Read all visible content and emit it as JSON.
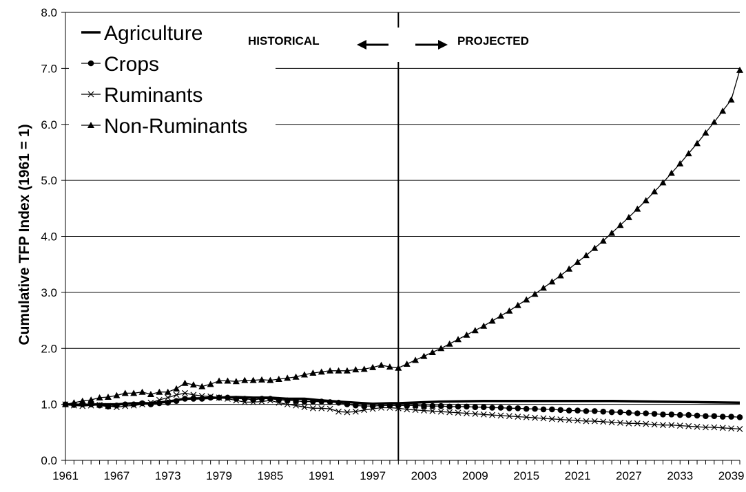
{
  "chart_data": {
    "type": "line",
    "ylabel": "Cumulative TFP Index (1961 = 1)",
    "xlabel": "",
    "xlim": [
      1961,
      2040
    ],
    "ylim": [
      0,
      8
    ],
    "grid": "horizontal",
    "legend_position": "top-left",
    "x_tick_labels": [
      "1961",
      "1967",
      "1973",
      "1979",
      "1985",
      "1991",
      "1997",
      "2003",
      "2009",
      "2015",
      "2021",
      "2027",
      "2033",
      "2039"
    ],
    "y_tick_labels": [
      "0.0",
      "1.0",
      "2.0",
      "3.0",
      "4.0",
      "5.0",
      "6.0",
      "7.0",
      "8.0"
    ],
    "divider_year": 2000,
    "annotations": {
      "historical": "HISTORICAL",
      "projected": "PROJECTED"
    },
    "series": [
      {
        "name": "Agriculture",
        "marker": "none",
        "points": [
          [
            1961,
            1.0
          ],
          [
            1963,
            0.99
          ],
          [
            1965,
            1.0
          ],
          [
            1967,
            1.0
          ],
          [
            1969,
            1.02
          ],
          [
            1971,
            1.02
          ],
          [
            1973,
            1.05
          ],
          [
            1975,
            1.1
          ],
          [
            1977,
            1.11
          ],
          [
            1979,
            1.12
          ],
          [
            1981,
            1.13
          ],
          [
            1983,
            1.12
          ],
          [
            1985,
            1.12
          ],
          [
            1987,
            1.1
          ],
          [
            1989,
            1.1
          ],
          [
            1991,
            1.07
          ],
          [
            1993,
            1.05
          ],
          [
            1995,
            1.03
          ],
          [
            1997,
            1.01
          ],
          [
            1999,
            1.02
          ],
          [
            2000,
            1.02
          ],
          [
            2005,
            1.05
          ],
          [
            2010,
            1.06
          ],
          [
            2015,
            1.06
          ],
          [
            2020,
            1.06
          ],
          [
            2025,
            1.06
          ],
          [
            2030,
            1.05
          ],
          [
            2035,
            1.04
          ],
          [
            2040,
            1.03
          ]
        ]
      },
      {
        "name": "Crops",
        "marker": "circle",
        "points": [
          [
            1961,
            1.0
          ],
          [
            1962,
            0.99
          ],
          [
            1963,
            1.0
          ],
          [
            1964,
            1.0
          ],
          [
            1965,
            0.98
          ],
          [
            1966,
            0.96
          ],
          [
            1967,
            0.98
          ],
          [
            1968,
            1.0
          ],
          [
            1969,
            1.0
          ],
          [
            1970,
            1.02
          ],
          [
            1971,
            1.0
          ],
          [
            1972,
            1.02
          ],
          [
            1973,
            1.03
          ],
          [
            1974,
            1.06
          ],
          [
            1975,
            1.1
          ],
          [
            1976,
            1.1
          ],
          [
            1977,
            1.1
          ],
          [
            1978,
            1.12
          ],
          [
            1979,
            1.12
          ],
          [
            1980,
            1.12
          ],
          [
            1981,
            1.1
          ],
          [
            1982,
            1.1
          ],
          [
            1983,
            1.08
          ],
          [
            1984,
            1.1
          ],
          [
            1985,
            1.1
          ],
          [
            1986,
            1.08
          ],
          [
            1987,
            1.07
          ],
          [
            1988,
            1.06
          ],
          [
            1989,
            1.05
          ],
          [
            1990,
            1.05
          ],
          [
            1991,
            1.05
          ],
          [
            1992,
            1.04
          ],
          [
            1993,
            1.03
          ],
          [
            1994,
            1.0
          ],
          [
            1995,
            0.98
          ],
          [
            1996,
            0.97
          ],
          [
            1997,
            0.97
          ],
          [
            1998,
            0.98
          ],
          [
            1999,
            0.98
          ],
          [
            2000,
            0.98
          ],
          [
            2001,
            0.98
          ],
          [
            2002,
            0.98
          ],
          [
            2003,
            0.97
          ],
          [
            2004,
            0.97
          ],
          [
            2005,
            0.97
          ],
          [
            2006,
            0.96
          ],
          [
            2007,
            0.96
          ],
          [
            2008,
            0.96
          ],
          [
            2009,
            0.95
          ],
          [
            2010,
            0.95
          ],
          [
            2011,
            0.94
          ],
          [
            2012,
            0.94
          ],
          [
            2013,
            0.93
          ],
          [
            2014,
            0.93
          ],
          [
            2015,
            0.92
          ],
          [
            2016,
            0.92
          ],
          [
            2017,
            0.91
          ],
          [
            2018,
            0.91
          ],
          [
            2019,
            0.9
          ],
          [
            2020,
            0.89
          ],
          [
            2021,
            0.89
          ],
          [
            2022,
            0.88
          ],
          [
            2023,
            0.88
          ],
          [
            2024,
            0.87
          ],
          [
            2025,
            0.86
          ],
          [
            2026,
            0.86
          ],
          [
            2027,
            0.85
          ],
          [
            2028,
            0.84
          ],
          [
            2029,
            0.84
          ],
          [
            2030,
            0.83
          ],
          [
            2031,
            0.82
          ],
          [
            2032,
            0.82
          ],
          [
            2033,
            0.81
          ],
          [
            2034,
            0.81
          ],
          [
            2035,
            0.8
          ],
          [
            2036,
            0.79
          ],
          [
            2037,
            0.79
          ],
          [
            2038,
            0.78
          ],
          [
            2039,
            0.78
          ],
          [
            2040,
            0.77
          ]
        ]
      },
      {
        "name": "Ruminants",
        "marker": "x",
        "points": [
          [
            1961,
            1.0
          ],
          [
            1962,
            0.98
          ],
          [
            1963,
            0.97
          ],
          [
            1964,
            0.98
          ],
          [
            1965,
            0.99
          ],
          [
            1966,
            0.97
          ],
          [
            1967,
            0.95
          ],
          [
            1968,
            0.97
          ],
          [
            1969,
            0.98
          ],
          [
            1970,
            1.0
          ],
          [
            1971,
            1.03
          ],
          [
            1972,
            1.08
          ],
          [
            1973,
            1.12
          ],
          [
            1974,
            1.17
          ],
          [
            1975,
            1.2
          ],
          [
            1976,
            1.17
          ],
          [
            1977,
            1.15
          ],
          [
            1978,
            1.14
          ],
          [
            1979,
            1.12
          ],
          [
            1980,
            1.1
          ],
          [
            1981,
            1.07
          ],
          [
            1982,
            1.04
          ],
          [
            1983,
            1.04
          ],
          [
            1984,
            1.05
          ],
          [
            1985,
            1.07
          ],
          [
            1986,
            1.03
          ],
          [
            1987,
            1.0
          ],
          [
            1988,
            0.98
          ],
          [
            1989,
            0.95
          ],
          [
            1990,
            0.93
          ],
          [
            1991,
            0.93
          ],
          [
            1992,
            0.92
          ],
          [
            1993,
            0.87
          ],
          [
            1994,
            0.86
          ],
          [
            1995,
            0.87
          ],
          [
            1996,
            0.9
          ],
          [
            1997,
            0.92
          ],
          [
            1998,
            0.94
          ],
          [
            1999,
            0.94
          ],
          [
            2000,
            0.93
          ],
          [
            2001,
            0.91
          ],
          [
            2002,
            0.9
          ],
          [
            2003,
            0.89
          ],
          [
            2004,
            0.88
          ],
          [
            2005,
            0.87
          ],
          [
            2006,
            0.86
          ],
          [
            2007,
            0.85
          ],
          [
            2008,
            0.84
          ],
          [
            2009,
            0.83
          ],
          [
            2010,
            0.82
          ],
          [
            2011,
            0.81
          ],
          [
            2012,
            0.8
          ],
          [
            2013,
            0.79
          ],
          [
            2014,
            0.78
          ],
          [
            2015,
            0.77
          ],
          [
            2016,
            0.76
          ],
          [
            2017,
            0.75
          ],
          [
            2018,
            0.74
          ],
          [
            2019,
            0.73
          ],
          [
            2020,
            0.72
          ],
          [
            2021,
            0.71
          ],
          [
            2022,
            0.7
          ],
          [
            2023,
            0.7
          ],
          [
            2024,
            0.69
          ],
          [
            2025,
            0.68
          ],
          [
            2026,
            0.67
          ],
          [
            2027,
            0.66
          ],
          [
            2028,
            0.66
          ],
          [
            2029,
            0.65
          ],
          [
            2030,
            0.64
          ],
          [
            2031,
            0.63
          ],
          [
            2032,
            0.63
          ],
          [
            2033,
            0.62
          ],
          [
            2034,
            0.61
          ],
          [
            2035,
            0.6
          ],
          [
            2036,
            0.59
          ],
          [
            2037,
            0.59
          ],
          [
            2038,
            0.58
          ],
          [
            2039,
            0.57
          ],
          [
            2040,
            0.56
          ]
        ]
      },
      {
        "name": "Non-Ruminants",
        "marker": "triangle",
        "points": [
          [
            1961,
            1.0
          ],
          [
            1962,
            1.03
          ],
          [
            1963,
            1.06
          ],
          [
            1964,
            1.08
          ],
          [
            1965,
            1.12
          ],
          [
            1966,
            1.13
          ],
          [
            1967,
            1.16
          ],
          [
            1968,
            1.2
          ],
          [
            1969,
            1.2
          ],
          [
            1970,
            1.22
          ],
          [
            1971,
            1.18
          ],
          [
            1972,
            1.22
          ],
          [
            1973,
            1.22
          ],
          [
            1974,
            1.28
          ],
          [
            1975,
            1.38
          ],
          [
            1976,
            1.35
          ],
          [
            1977,
            1.32
          ],
          [
            1978,
            1.36
          ],
          [
            1979,
            1.42
          ],
          [
            1980,
            1.42
          ],
          [
            1981,
            1.41
          ],
          [
            1982,
            1.43
          ],
          [
            1983,
            1.43
          ],
          [
            1984,
            1.44
          ],
          [
            1985,
            1.43
          ],
          [
            1986,
            1.45
          ],
          [
            1987,
            1.47
          ],
          [
            1988,
            1.49
          ],
          [
            1989,
            1.53
          ],
          [
            1990,
            1.56
          ],
          [
            1991,
            1.58
          ],
          [
            1992,
            1.6
          ],
          [
            1993,
            1.6
          ],
          [
            1994,
            1.6
          ],
          [
            1995,
            1.62
          ],
          [
            1996,
            1.63
          ],
          [
            1997,
            1.66
          ],
          [
            1998,
            1.7
          ],
          [
            1999,
            1.67
          ],
          [
            2000,
            1.65
          ],
          [
            2001,
            1.72
          ],
          [
            2002,
            1.79
          ],
          [
            2003,
            1.86
          ],
          [
            2004,
            1.93
          ],
          [
            2005,
            2.0
          ],
          [
            2006,
            2.08
          ],
          [
            2007,
            2.16
          ],
          [
            2008,
            2.24
          ],
          [
            2009,
            2.32
          ],
          [
            2010,
            2.4
          ],
          [
            2011,
            2.49
          ],
          [
            2012,
            2.58
          ],
          [
            2013,
            2.67
          ],
          [
            2014,
            2.77
          ],
          [
            2015,
            2.87
          ],
          [
            2016,
            2.97
          ],
          [
            2017,
            3.08
          ],
          [
            2018,
            3.19
          ],
          [
            2019,
            3.3
          ],
          [
            2020,
            3.42
          ],
          [
            2021,
            3.54
          ],
          [
            2022,
            3.66
          ],
          [
            2023,
            3.79
          ],
          [
            2024,
            3.92
          ],
          [
            2025,
            4.06
          ],
          [
            2026,
            4.2
          ],
          [
            2027,
            4.34
          ],
          [
            2028,
            4.49
          ],
          [
            2029,
            4.64
          ],
          [
            2030,
            4.8
          ],
          [
            2031,
            4.96
          ],
          [
            2032,
            5.13
          ],
          [
            2033,
            5.3
          ],
          [
            2034,
            5.48
          ],
          [
            2035,
            5.66
          ],
          [
            2036,
            5.85
          ],
          [
            2037,
            6.04
          ],
          [
            2038,
            6.24
          ],
          [
            2039,
            6.44
          ],
          [
            2040,
            6.97
          ]
        ]
      }
    ]
  }
}
